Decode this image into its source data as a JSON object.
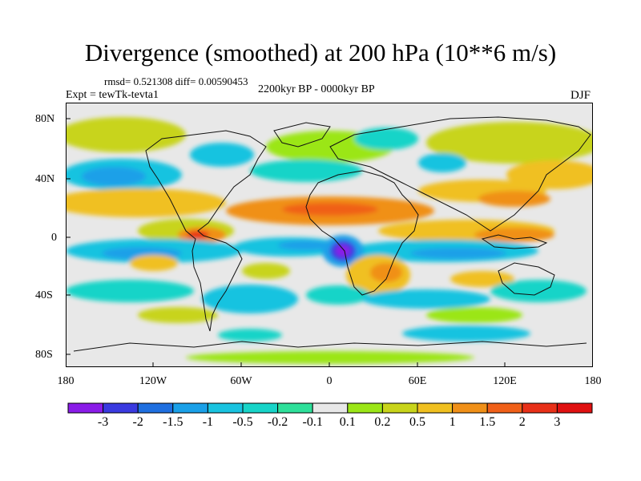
{
  "header": {
    "title": "Divergence (smoothed) at 200 hPa (10**6 m/s)",
    "stats": "rmsd= 0.521308 diff= 0.00590453",
    "experiment": "Expt = tewTk-tevta1",
    "period": "2200kyr BP - 0000kyr BP",
    "season": "DJF"
  },
  "map": {
    "lat_labels": [
      "80N",
      "40N",
      "0",
      "40S",
      "80S"
    ],
    "lon_labels": [
      "180",
      "120W",
      "60W",
      "0",
      "60E",
      "120E",
      "180"
    ],
    "lat_values": [
      80,
      40,
      0,
      -40,
      -80
    ],
    "lon_values": [
      -180,
      -120,
      -60,
      0,
      60,
      120,
      180
    ]
  },
  "colorbar": {
    "labels": [
      "-3",
      "-2",
      "-1.5",
      "-1",
      "-0.5",
      "-0.2",
      "-0.1",
      "0.1",
      "0.2",
      "0.5",
      "1",
      "1.5",
      "2",
      "3"
    ],
    "colors": [
      "#8a1ce8",
      "#3a3ae0",
      "#1f6fe0",
      "#1aa0e8",
      "#19c3e0",
      "#17d4c8",
      "#2ee09a",
      "#e8e8e8",
      "#9be617",
      "#c8d41a",
      "#f0c020",
      "#f09018",
      "#f06018",
      "#e83018",
      "#e01010"
    ]
  },
  "colors": {
    "neutral": "#e8e8e8",
    "coast": "#111111"
  }
}
